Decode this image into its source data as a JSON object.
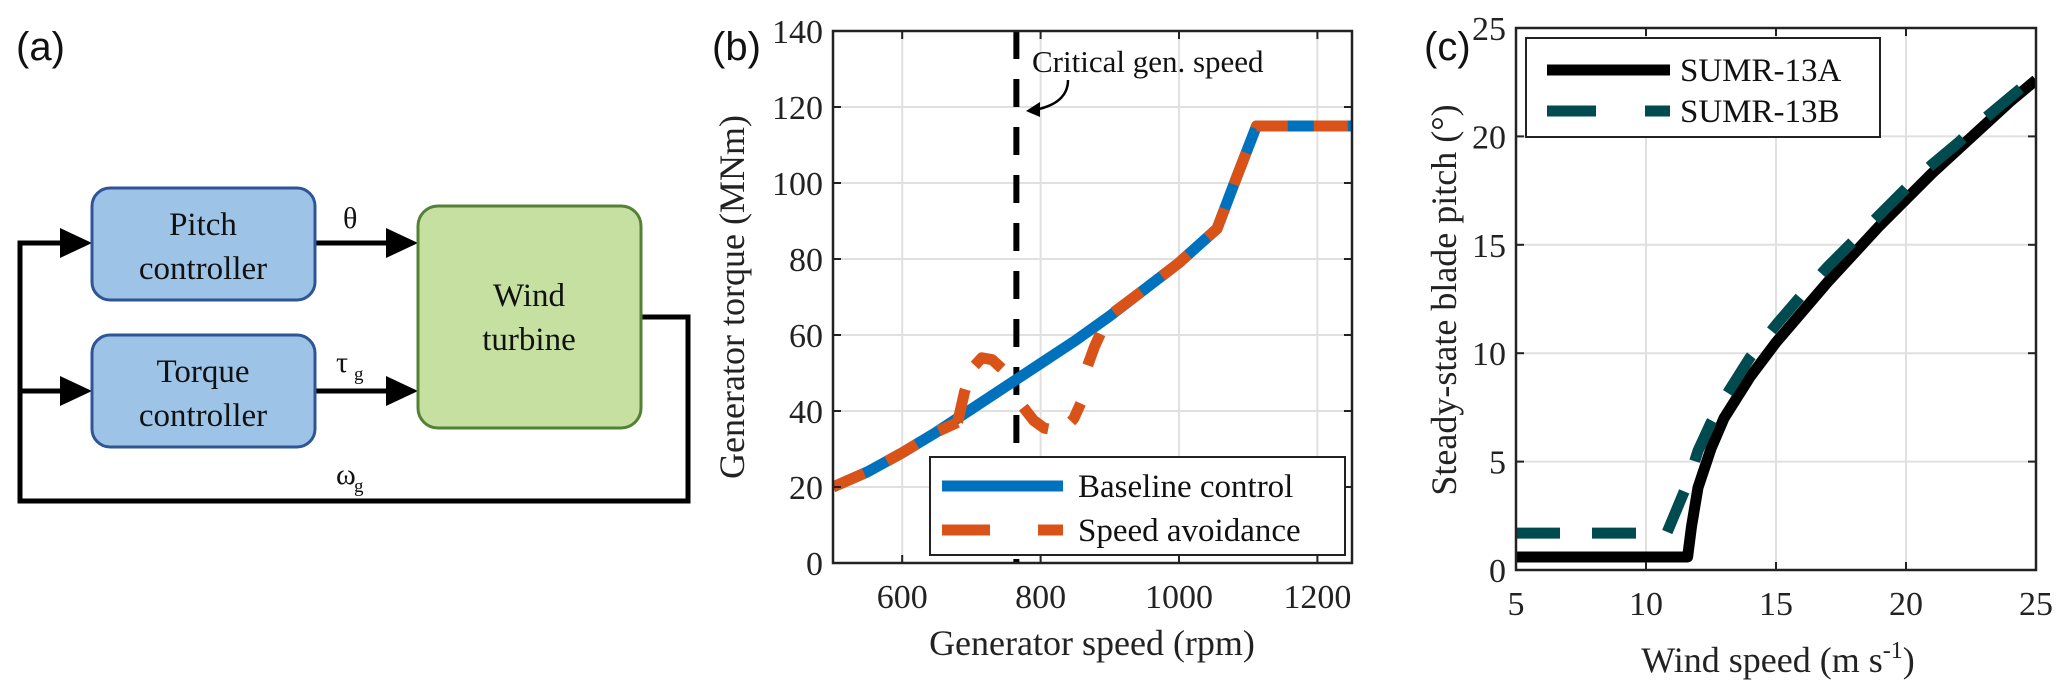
{
  "figure": {
    "panel_labels": [
      "(a)",
      "(b)",
      "(c)"
    ]
  },
  "diagram": {
    "blocks": [
      {
        "id": "pitch",
        "lines": [
          "Pitch",
          "controller"
        ],
        "fill": "#9DC3E6",
        "stroke": "#2F5597"
      },
      {
        "id": "torque",
        "lines": [
          "Torque",
          "controller"
        ],
        "fill": "#9DC3E6",
        "stroke": "#2F5597"
      },
      {
        "id": "turbine",
        "lines": [
          "Wind",
          "turbine"
        ],
        "fill": "#C5E0A0",
        "stroke": "#548235"
      }
    ],
    "signals": {
      "pitch_out": {
        "symbol": "θ",
        "subscript": ""
      },
      "torque_out": {
        "symbol": "τ",
        "subscript": "g"
      },
      "feedback": {
        "symbol": "ω",
        "subscript": "g"
      }
    }
  },
  "chart_data": [
    {
      "type": "line",
      "panel": "(b)",
      "title": "",
      "xlabel": "Generator speed (rpm)",
      "ylabel": "Generator torque (MNm)",
      "xlim": [
        500,
        1250
      ],
      "ylim": [
        0,
        140
      ],
      "xticks": [
        600,
        800,
        1000,
        1200
      ],
      "yticks": [
        0,
        20,
        40,
        60,
        80,
        100,
        120,
        140
      ],
      "grid": true,
      "legend_position": "bottom-right",
      "series": [
        {
          "name": "Baseline control",
          "color": "#0072BD",
          "style": "solid",
          "x": [
            500,
            550,
            600,
            650,
            700,
            750,
            800,
            850,
            900,
            950,
            1000,
            1055,
            1080,
            1112,
            1250
          ],
          "y": [
            20,
            24,
            29,
            34.5,
            40.5,
            46.5,
            52.5,
            58.5,
            65,
            72,
            79,
            88,
            100,
            115,
            115
          ]
        },
        {
          "name": "Speed avoidance",
          "color": "#D95319",
          "style": "dashed",
          "segments": [
            {
              "x": [
                500,
                550,
                600,
                650,
                680
              ],
              "y": [
                20,
                24,
                29,
                34.5,
                37
              ]
            },
            {
              "x": [
                680,
                690,
                700,
                715,
                730,
                745,
                755
              ],
              "y": [
                37,
                45,
                51,
                54,
                53.5,
                51,
                48
              ]
            },
            {
              "x": [
                775,
                790,
                805,
                820,
                835,
                848,
                858
              ],
              "y": [
                41,
                37.5,
                35.5,
                35,
                35.5,
                38,
                42
              ]
            },
            {
              "x": [
                868,
                878,
                888,
                898,
                906
              ],
              "y": [
                52,
                57,
                61,
                64,
                66
              ]
            },
            {
              "x": [
                906,
                950,
                1000,
                1055,
                1080,
                1112,
                1250
              ],
              "y": [
                66,
                72,
                79,
                88,
                100,
                115,
                115
              ]
            }
          ]
        }
      ],
      "annotations": [
        {
          "type": "vline",
          "x": 765,
          "style": "dashed",
          "color": "#000000",
          "label": "Critical gen. speed"
        }
      ]
    },
    {
      "type": "line",
      "panel": "(c)",
      "title": "",
      "xlabel": "Wind speed (m s",
      "xlabel_superscript": "-1",
      "xlabel_suffix": ")",
      "ylabel": "Steady-state blade pitch (°)",
      "xlim": [
        5,
        25
      ],
      "ylim": [
        0,
        25
      ],
      "xticks": [
        5,
        10,
        15,
        20,
        25
      ],
      "yticks": [
        0,
        5,
        10,
        15,
        20,
        25
      ],
      "grid": true,
      "legend_position": "top-left",
      "series": [
        {
          "name": "SUMR-13A",
          "color": "#000000",
          "style": "solid",
          "x": [
            5,
            11.6,
            11.75,
            12,
            12.5,
            13,
            14,
            15,
            16,
            17,
            18,
            19,
            20,
            21,
            22,
            23,
            24,
            25
          ],
          "y": [
            0.6,
            0.6,
            2.0,
            3.8,
            5.6,
            7.0,
            8.9,
            10.5,
            11.9,
            13.3,
            14.6,
            15.9,
            17.1,
            18.3,
            19.4,
            20.5,
            21.6,
            22.6
          ]
        },
        {
          "name": "SUMR-13B",
          "color": "#004B50",
          "style": "dashed",
          "x": [
            5,
            10.8,
            11.6,
            12,
            12.5,
            13,
            14,
            15,
            16,
            17,
            18,
            19,
            20,
            21,
            22,
            23,
            24,
            25
          ],
          "y": [
            1.7,
            1.7,
            4.0,
            5.5,
            6.8,
            7.9,
            9.8,
            11.3,
            12.7,
            14.0,
            15.2,
            16.4,
            17.6,
            18.7,
            19.7,
            20.8,
            21.8,
            22.8
          ]
        }
      ]
    }
  ]
}
